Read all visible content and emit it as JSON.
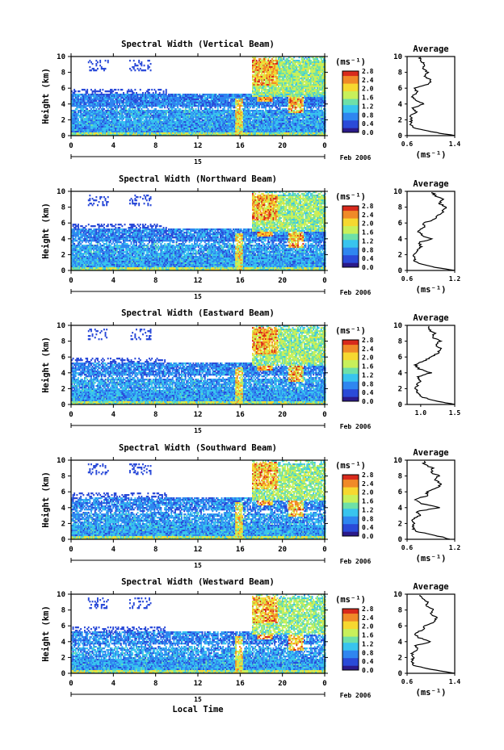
{
  "chart_data": [
    {
      "type": "heatmap",
      "title": "Spectral Width (Vertical Beam)",
      "ylabel": "Height (km)",
      "xticks": [
        "0",
        "4",
        "8",
        "12",
        "16",
        "20",
        "0"
      ],
      "yticks": [
        "0",
        "2",
        "4",
        "6",
        "8",
        "10"
      ],
      "xlim": [
        0,
        24
      ],
      "ylim": [
        0,
        10
      ],
      "date_label": "15",
      "month_label": "Feb 2006",
      "colorbar": {
        "unit": "(ms⁻¹)",
        "ticks": [
          "0.0",
          "0.4",
          "0.8",
          "1.2",
          "1.6",
          "2.0",
          "2.4",
          "2.8"
        ]
      },
      "profile": {
        "title": "Average",
        "xlabel": "(ms⁻¹)",
        "xticks": [
          "0.6",
          "1.4"
        ],
        "xlim": [
          0.6,
          1.4
        ],
        "heights": [
          0,
          0.5,
          1,
          1.5,
          2,
          2.5,
          3,
          3.5,
          4,
          4.5,
          5,
          5.5,
          6,
          6.5,
          7,
          7.5,
          8,
          8.5,
          9,
          9.5,
          10
        ],
        "values": [
          1.4,
          1.0,
          0.7,
          0.66,
          0.67,
          0.66,
          0.75,
          0.7,
          0.88,
          0.74,
          0.68,
          0.78,
          0.72,
          0.95,
          1.0,
          0.9,
          0.95,
          0.85,
          0.9,
          0.82,
          0.82
        ]
      }
    },
    {
      "type": "heatmap",
      "title": "Spectral Width (Northward Beam)",
      "ylabel": "Height (km)",
      "xticks": [
        "0",
        "4",
        "8",
        "12",
        "16",
        "20",
        "0"
      ],
      "yticks": [
        "0",
        "2",
        "4",
        "6",
        "8",
        "10"
      ],
      "xlim": [
        0,
        24
      ],
      "ylim": [
        0,
        10
      ],
      "date_label": "15",
      "month_label": "Feb 2006",
      "colorbar": {
        "unit": "(ms⁻¹)",
        "ticks": [
          "0.0",
          "0.4",
          "0.8",
          "1.2",
          "1.6",
          "2.0",
          "2.4",
          "2.8"
        ]
      },
      "profile": {
        "title": "Average",
        "xlabel": "(ms⁻¹)",
        "xticks": [
          "0.6",
          "1.2"
        ],
        "xlim": [
          0.6,
          1.2
        ],
        "heights": [
          0,
          0.5,
          1,
          1.5,
          2,
          2.5,
          3,
          3.5,
          4,
          4.5,
          5,
          5.5,
          6,
          6.5,
          7,
          7.5,
          8,
          8.5,
          9,
          9.5,
          10
        ],
        "values": [
          1.2,
          0.9,
          0.72,
          0.68,
          0.7,
          0.72,
          0.78,
          0.74,
          0.9,
          0.78,
          0.74,
          0.82,
          0.8,
          0.95,
          1.0,
          1.05,
          1.1,
          1.0,
          1.05,
          0.95,
          0.9
        ]
      }
    },
    {
      "type": "heatmap",
      "title": "Spectral Width (Eastward Beam)",
      "ylabel": "Height (km)",
      "xticks": [
        "0",
        "4",
        "8",
        "12",
        "16",
        "20",
        "0"
      ],
      "yticks": [
        "0",
        "2",
        "4",
        "6",
        "8",
        "10"
      ],
      "xlim": [
        0,
        24
      ],
      "ylim": [
        0,
        10
      ],
      "date_label": "15",
      "month_label": "Feb 2006",
      "colorbar": {
        "unit": "(ms⁻¹)",
        "ticks": [
          "0.0",
          "0.4",
          "0.8",
          "1.2",
          "1.6",
          "2.0",
          "2.4",
          "2.8"
        ]
      },
      "profile": {
        "title": "Average",
        "xlabel": "",
        "xticks": [
          "1.0",
          "1.5"
        ],
        "xlim": [
          0.8,
          1.5
        ],
        "heights": [
          0,
          0.5,
          1,
          1.5,
          2,
          2.5,
          3,
          3.5,
          4,
          4.5,
          5,
          5.5,
          6,
          6.5,
          7,
          7.5,
          8,
          8.5,
          9,
          9.5,
          10
        ],
        "values": [
          1.5,
          1.2,
          1.0,
          0.95,
          0.93,
          0.95,
          1.0,
          0.95,
          1.15,
          0.98,
          0.92,
          1.05,
          1.15,
          1.25,
          1.3,
          1.22,
          1.28,
          1.18,
          1.2,
          1.12,
          1.1
        ]
      }
    },
    {
      "type": "heatmap",
      "title": "Spectral Width (Southward Beam)",
      "ylabel": "Height (km)",
      "xticks": [
        "0",
        "4",
        "8",
        "12",
        "16",
        "20",
        "0"
      ],
      "yticks": [
        "0",
        "2",
        "4",
        "6",
        "8",
        "10"
      ],
      "xlim": [
        0,
        24
      ],
      "ylim": [
        0,
        10
      ],
      "date_label": "15",
      "month_label": "Feb 2006",
      "colorbar": {
        "unit": "(ms⁻¹)",
        "ticks": [
          "0.0",
          "0.4",
          "0.8",
          "1.2",
          "1.6",
          "2.0",
          "2.4",
          "2.8"
        ]
      },
      "profile": {
        "title": "Average",
        "xlabel": "(ms⁻¹)",
        "xticks": [
          "0.6",
          "1.2"
        ],
        "xlim": [
          0.6,
          1.2
        ],
        "heights": [
          0,
          0.5,
          1,
          1.5,
          2,
          2.5,
          3,
          3.5,
          4,
          4.5,
          5,
          5.5,
          6,
          6.5,
          7,
          7.5,
          8,
          8.5,
          9,
          9.5,
          10
        ],
        "values": [
          1.15,
          0.95,
          0.72,
          0.66,
          0.68,
          0.66,
          0.76,
          0.72,
          1.0,
          0.78,
          0.7,
          0.84,
          0.86,
          0.98,
          1.02,
          0.96,
          1.0,
          0.9,
          0.92,
          0.82,
          0.8
        ]
      }
    },
    {
      "type": "heatmap",
      "title": "Spectral Width (Westward Beam)",
      "ylabel": "Height (km)",
      "xlabel": "Local Time",
      "xticks": [
        "0",
        "4",
        "8",
        "12",
        "16",
        "20",
        "0"
      ],
      "yticks": [
        "0",
        "2",
        "4",
        "6",
        "8",
        "10"
      ],
      "xlim": [
        0,
        24
      ],
      "ylim": [
        0,
        10
      ],
      "date_label": "15",
      "month_label": "Feb 2006",
      "colorbar": {
        "unit": "(ms⁻¹)",
        "ticks": [
          "0.0",
          "0.4",
          "0.8",
          "1.2",
          "1.6",
          "2.0",
          "2.4",
          "2.8"
        ]
      },
      "profile": {
        "title": "Average",
        "xlabel": "(ms⁻¹)",
        "xticks": [
          "0.6",
          "1.4"
        ],
        "xlim": [
          0.6,
          1.4
        ],
        "heights": [
          0,
          0.5,
          1,
          1.5,
          2,
          2.5,
          3,
          3.5,
          4,
          4.5,
          5,
          5.5,
          6,
          6.5,
          7,
          7.5,
          8,
          8.5,
          9,
          9.5,
          10
        ],
        "values": [
          1.4,
          1.0,
          0.72,
          0.68,
          0.7,
          0.68,
          0.78,
          0.74,
          1.0,
          0.8,
          0.72,
          0.86,
          0.9,
          1.05,
          1.1,
          1.0,
          1.05,
          0.92,
          0.95,
          0.85,
          0.82
        ]
      }
    }
  ],
  "colors": {
    "scale": [
      "#2b1a8a",
      "#2a4ad8",
      "#2f86f0",
      "#38c4ee",
      "#6ee0a8",
      "#c8f05a",
      "#f6d830",
      "#f08a28",
      "#d82a1c"
    ],
    "background": "#ffffff",
    "frame": "#000000"
  }
}
